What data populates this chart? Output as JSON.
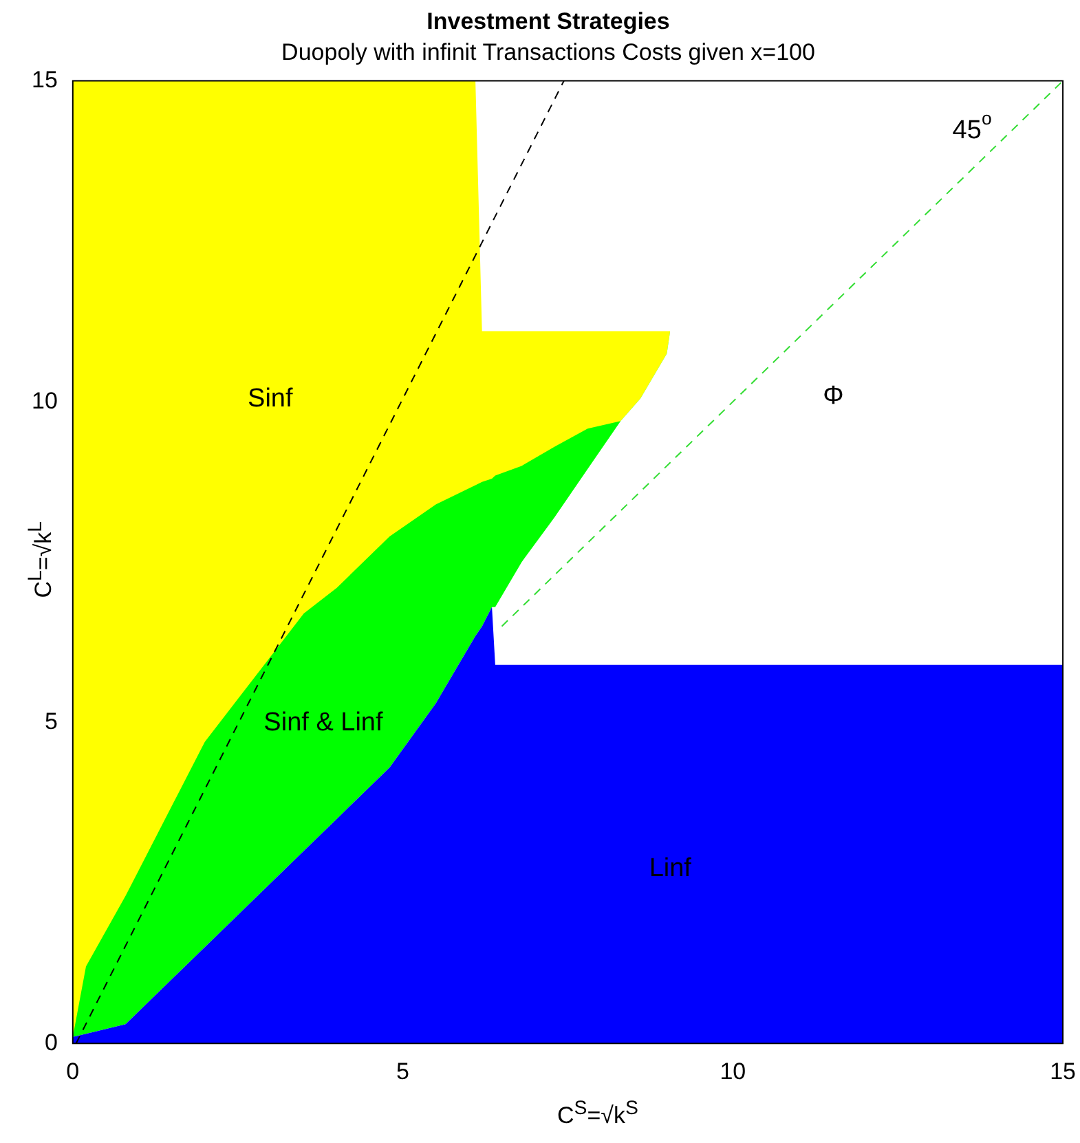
{
  "chart_data": {
    "type": "area",
    "title": "Investment Strategies",
    "subtitle": "Duopoly with infinit Transactions Costs given x=100",
    "xlabel": "C$^{S}$=√k$^{S}$",
    "ylabel": "C$^{L}$=√k$^{L}$",
    "x": [
      0,
      0.2,
      0.8,
      1.3,
      2,
      2.9,
      3.5,
      4,
      4.8,
      5.5,
      6.1,
      6.2,
      6.35,
      6.4,
      6.8,
      7.3,
      7.8,
      8.3,
      8.6,
      9.0,
      9.05,
      9.1,
      15
    ],
    "series": [
      {
        "name": "Linf",
        "color": "#0000ff",
        "values": [
          0.1,
          0.15,
          0.3,
          0.8,
          1.5,
          2.4,
          3.0,
          3.5,
          4.3,
          5.3,
          6.35,
          6.5,
          6.8,
          5.9,
          5.9,
          5.9,
          5.9,
          5.9,
          5.9,
          5.9,
          5.9,
          5.9,
          5.9
        ]
      },
      {
        "name": "Φ",
        "color": "#ffffff",
        "values": [
          0.1,
          0.15,
          0.3,
          0.8,
          1.5,
          2.4,
          3.0,
          3.5,
          4.3,
          5.3,
          6.35,
          6.5,
          6.8,
          6.8,
          7.5,
          8.2,
          8.95,
          9.7,
          10.05,
          10.75,
          11.1,
          15,
          15
        ]
      },
      {
        "name": "Sinf & Linf",
        "color": "#00ff00",
        "values": [
          0.1,
          1.2,
          2.3,
          3.3,
          4.7,
          5.9,
          6.7,
          7.1,
          7.9,
          8.4,
          8.7,
          8.75,
          8.8,
          8.85,
          9.0,
          9.3,
          9.58,
          9.7,
          10.05,
          10.75,
          11.1,
          null,
          null
        ]
      },
      {
        "name": "Sinf",
        "color": "#ffff00",
        "values": [
          15,
          15,
          15,
          15,
          15,
          15,
          15,
          15,
          15,
          15,
          15,
          11.1,
          11.1,
          11.1,
          11.1,
          11.1,
          11.1,
          11.1,
          11.1,
          11.1,
          11.1,
          null,
          null
        ]
      },
      {
        "type": "line",
        "color": "#000000",
        "line_style": "dashed",
        "x": [
          0.05,
          7.44
        ],
        "values": [
          0,
          15
        ]
      },
      {
        "type": "line",
        "color": "#33dd33",
        "line_style": "dashed",
        "x": [
          6.5,
          15
        ],
        "values": [
          6.5,
          15
        ]
      }
    ],
    "xlim": [
      0,
      15
    ],
    "ylim": [
      0,
      15
    ],
    "xticks": [
      0,
      5,
      10,
      15
    ],
    "yticks": [
      0,
      5,
      10,
      15
    ],
    "grid": false,
    "annotations": [
      {
        "text": "45$^{o}$",
        "x": 14,
        "y": 14
      }
    ]
  }
}
